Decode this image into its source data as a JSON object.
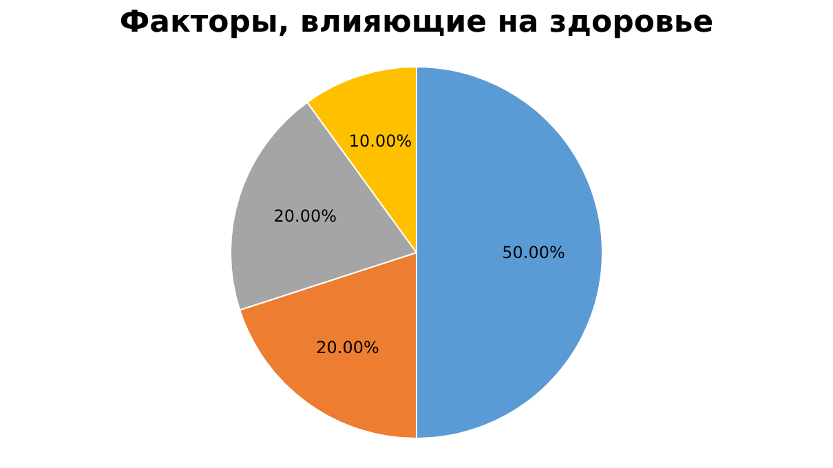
{
  "chart_data": {
    "type": "pie",
    "title": "Факторы, влияющие на здоровье",
    "categories": [
      null,
      null,
      null,
      null
    ],
    "values": [
      50,
      20,
      20,
      10
    ],
    "colors": [
      "#5b9bd5",
      "#ed7d31",
      "#a5a5a5",
      "#ffc000"
    ],
    "value_labels": [
      "50.00%",
      "20.00%",
      "20.00%",
      "10.00%"
    ],
    "legend": false
  }
}
